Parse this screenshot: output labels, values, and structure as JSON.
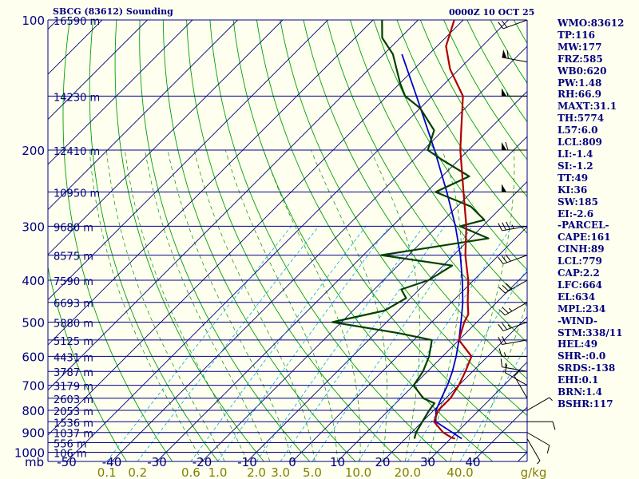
{
  "header": {
    "station": "SBCG (83612) Sounding",
    "time": "0000Z 10 OCT 25"
  },
  "chart_data": {
    "type": "skew-t",
    "pressure_ticks": [
      "100",
      "200",
      "300",
      "400",
      "500",
      "600",
      "700",
      "800",
      "900",
      "1000"
    ],
    "pressure_unit": "mb",
    "height_levels": [
      {
        "p": 100,
        "label": "16590 m"
      },
      {
        "p": 150,
        "label": "14230 m"
      },
      {
        "p": 200,
        "label": "12410 m"
      },
      {
        "p": 250,
        "label": "10950 m"
      },
      {
        "p": 300,
        "label": "9680 m"
      },
      {
        "p": 350,
        "label": "8575 m"
      },
      {
        "p": 400,
        "label": "7590 m"
      },
      {
        "p": 450,
        "label": "6693 m"
      },
      {
        "p": 500,
        "label": "5880 m"
      },
      {
        "p": 550,
        "label": "5125 m"
      },
      {
        "p": 600,
        "label": "4431 m"
      },
      {
        "p": 650,
        "label": "3787 m"
      },
      {
        "p": 700,
        "label": "3179 m"
      },
      {
        "p": 750,
        "label": "2603 m"
      },
      {
        "p": 800,
        "label": "2053 m"
      },
      {
        "p": 850,
        "label": "1536 m"
      },
      {
        "p": 900,
        "label": "1037 m"
      },
      {
        "p": 950,
        "label": "556 m"
      },
      {
        "p": 1000,
        "label": "106 m"
      }
    ],
    "temperature_ticks": [
      -50,
      -40,
      -30,
      -20,
      -10,
      0,
      10,
      20,
      30,
      40
    ],
    "temperature_tick_labels": [
      "-50",
      "-40",
      "-30",
      "-20",
      "-10",
      "0",
      "10",
      "20",
      "30",
      "40"
    ],
    "mixing_ratio_labels": [
      "0.1",
      "0.2",
      "0.6",
      "1.0",
      "2.0",
      "3.0",
      "5.0",
      "10.0",
      "20.0",
      "40.0"
    ],
    "mixing_ratio_values": [
      0.1,
      0.2,
      0.6,
      1.0,
      2.0,
      3.0,
      5.0,
      10.0,
      20.0,
      40.0
    ],
    "mixing_ratio_unit": "g/kg",
    "temperature_profile": [
      [
        930,
        31.0
      ],
      [
        925,
        30.0
      ],
      [
        900,
        27.0
      ],
      [
        850,
        22.6
      ],
      [
        800,
        21.0
      ],
      [
        750,
        21.0
      ],
      [
        700,
        20.0
      ],
      [
        650,
        18.4
      ],
      [
        600,
        16.4
      ],
      [
        550,
        10.0
      ],
      [
        500,
        7.2
      ],
      [
        480,
        6.4
      ],
      [
        450,
        3.6
      ],
      [
        400,
        -1.2
      ],
      [
        350,
        -7.4
      ],
      [
        300,
        -13.6
      ],
      [
        250,
        -21.8
      ],
      [
        200,
        -31.8
      ],
      [
        180,
        -36.0
      ],
      [
        150,
        -43.2
      ],
      [
        130,
        -52.0
      ],
      [
        115,
        -58.0
      ],
      [
        100,
        -62.0
      ]
    ],
    "dewpoint_profile": [
      [
        930,
        22.0
      ],
      [
        900,
        21.0
      ],
      [
        850,
        20.0
      ],
      [
        800,
        19.0
      ],
      [
        770,
        18.6
      ],
      [
        750,
        15.0
      ],
      [
        700,
        10.0
      ],
      [
        650,
        9.0
      ],
      [
        600,
        7.0
      ],
      [
        550,
        4.0
      ],
      [
        530,
        -5.0
      ],
      [
        500,
        -22.0
      ],
      [
        470,
        -13.0
      ],
      [
        440,
        -11.0
      ],
      [
        420,
        -14.0
      ],
      [
        400,
        -10.0
      ],
      [
        370,
        -8.0
      ],
      [
        350,
        -26.0
      ],
      [
        320,
        -6.0
      ],
      [
        300,
        -15.0
      ],
      [
        290,
        -11.0
      ],
      [
        270,
        -17.0
      ],
      [
        250,
        -28.0
      ],
      [
        230,
        -24.0
      ],
      [
        210,
        -34.0
      ],
      [
        200,
        -39.0
      ],
      [
        180,
        -42.0
      ],
      [
        160,
        -50.0
      ],
      [
        150,
        -56.0
      ],
      [
        140,
        -60.0
      ],
      [
        120,
        -68.0
      ],
      [
        110,
        -74.0
      ],
      [
        100,
        -78.0
      ]
    ],
    "parcel_profile": [
      [
        930,
        32.5
      ],
      [
        850,
        23.0
      ],
      [
        800,
        20.5
      ],
      [
        750,
        19.0
      ],
      [
        700,
        17.5
      ],
      [
        650,
        15.5
      ],
      [
        600,
        13.0
      ],
      [
        550,
        10.0
      ],
      [
        500,
        6.5
      ],
      [
        450,
        2.5
      ],
      [
        400,
        -2.5
      ],
      [
        350,
        -8.5
      ],
      [
        300,
        -16.0
      ],
      [
        250,
        -25.5
      ],
      [
        200,
        -37.5
      ],
      [
        150,
        -53.5
      ],
      [
        120,
        -66.0
      ]
    ],
    "wind_profile": [
      [
        930,
        150,
        5
      ],
      [
        900,
        120,
        10
      ],
      [
        850,
        90,
        10
      ],
      [
        800,
        60,
        5
      ],
      [
        750,
        330,
        10
      ],
      [
        700,
        300,
        10
      ],
      [
        650,
        280,
        15
      ],
      [
        600,
        270,
        15
      ],
      [
        550,
        260,
        20
      ],
      [
        500,
        250,
        25
      ],
      [
        450,
        240,
        25
      ],
      [
        400,
        240,
        30
      ],
      [
        350,
        250,
        30
      ],
      [
        300,
        260,
        35
      ],
      [
        250,
        270,
        50
      ],
      [
        200,
        270,
        60
      ],
      [
        150,
        270,
        55
      ],
      [
        125,
        280,
        60
      ],
      [
        100,
        250,
        20
      ]
    ]
  },
  "stats": [
    "WMO:83612",
    "TP:116",
    "MW:177",
    "FRZ:585",
    "WB0:620",
    "PW:1.48",
    "RH:66.9",
    "MAXT:31.1",
    "TH:5774",
    "L57:6.0",
    "LCL:809",
    "LI:-1.4",
    "SI:-1.2",
    "TT:49",
    "KI:36",
    "SW:185",
    "EI:-2.6",
    "-PARCEL-",
    "CAPE:161",
    "CINH:89",
    "LCL:779",
    "CAP:2.2",
    "LFC:664",
    "EL:634",
    "MPL:234",
    "-WIND-",
    "STM:338/11",
    "HEL:49",
    "SHR-:0.0",
    "SRDS:-138",
    "EHI:0.1",
    "BRN:1.4",
    "BSHR:117"
  ],
  "colors": {
    "background": "#fffff0",
    "isobar": "#00008b",
    "isotherm": "#000080",
    "dry_adiabat": "#00a000",
    "moist_adiabat": "#009000",
    "mixing_ratio": "#00aaee",
    "temperature": "#b00000",
    "dewpoint": "#004000",
    "parcel": "#0000cc",
    "labels": "#000080",
    "mixing_label": "#808000",
    "wind": "#000000"
  }
}
